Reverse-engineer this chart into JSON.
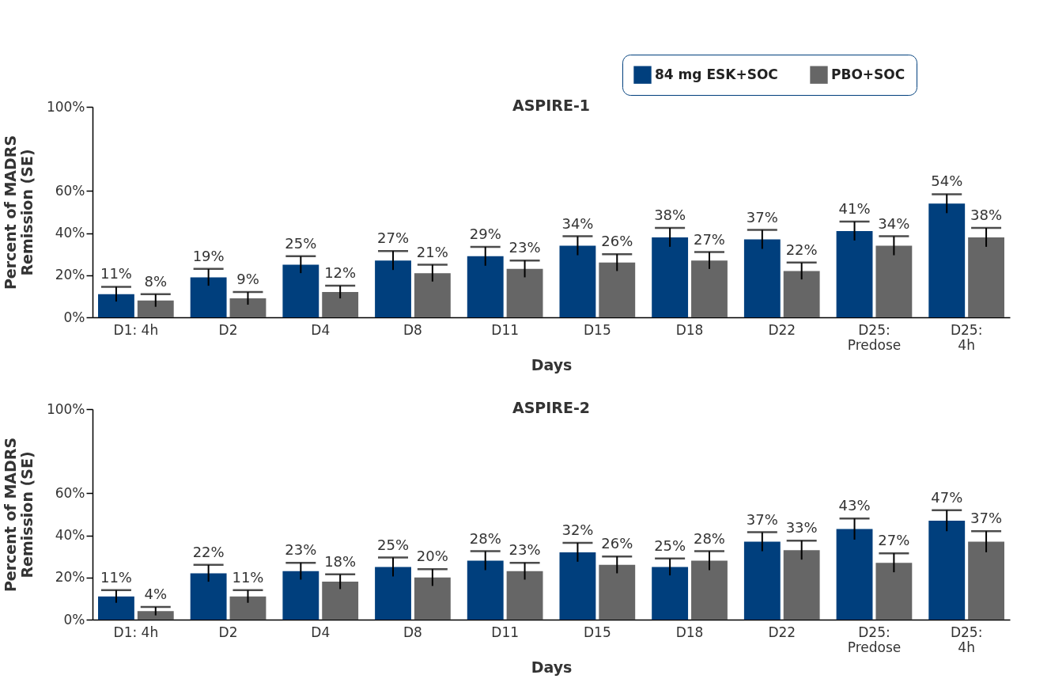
{
  "chart_data": [
    {
      "type": "bar",
      "title": "ASPIRE-1",
      "xlabel": "Days",
      "ylabel": "Percent of MADRS\nRemission (SE)",
      "categories": [
        "D1: 4h",
        "D2",
        "D4",
        "D8",
        "D11",
        "D15",
        "D18",
        "D22",
        "D25:\nPredose",
        "D25:\n4h"
      ],
      "series": [
        {
          "name": "84 mg ESK+SOC",
          "color": "#003f7d",
          "values": [
            11,
            19,
            25,
            27,
            29,
            34,
            38,
            37,
            41,
            54
          ],
          "errors": [
            3.5,
            4,
            4,
            4.5,
            4.5,
            4.5,
            4.5,
            4.5,
            4.5,
            4.5
          ],
          "value_labels": [
            "11%",
            "19%",
            "25%",
            "27%",
            "29%",
            "34%",
            "38%",
            "37%",
            "41%",
            "54%"
          ]
        },
        {
          "name": "PBO+SOC",
          "color": "#666666",
          "values": [
            8,
            9,
            12,
            21,
            23,
            26,
            27,
            22,
            34,
            38
          ],
          "errors": [
            3,
            3,
            3,
            4,
            4,
            4,
            4,
            4,
            4.5,
            4.5
          ],
          "value_labels": [
            "8%",
            "9%",
            "12%",
            "21%",
            "23%",
            "26%",
            "27%",
            "22%",
            "34%",
            "38%"
          ]
        }
      ],
      "ylim": [
        0,
        100
      ],
      "yticks": [
        {
          "value": 0,
          "label": "0%"
        },
        {
          "value": 20,
          "label": "20%"
        },
        {
          "value": 40,
          "label": "40%"
        },
        {
          "value": 60,
          "label": "60%"
        },
        {
          "value": 100,
          "label": "100%"
        }
      ],
      "grid": false,
      "legend": "top right"
    },
    {
      "type": "bar",
      "title": "ASPIRE-2",
      "xlabel": "Days",
      "ylabel": "Percent of MADRS\nRemission (SE)",
      "categories": [
        "D1: 4h",
        "D2",
        "D4",
        "D8",
        "D11",
        "D15",
        "D18",
        "D22",
        "D25:\nPredose",
        "D25:\n4h"
      ],
      "series": [
        {
          "name": "84 mg ESK+SOC",
          "color": "#003f7d",
          "values": [
            11,
            22,
            23,
            25,
            28,
            32,
            25,
            37,
            43,
            47
          ],
          "errors": [
            3,
            4,
            4,
            4.5,
            4.5,
            4.5,
            4,
            4.5,
            5,
            5
          ],
          "value_labels": [
            "11%",
            "22%",
            "23%",
            "25%",
            "28%",
            "32%",
            "25%",
            "37%",
            "43%",
            "47%"
          ]
        },
        {
          "name": "PBO+SOC",
          "color": "#666666",
          "values": [
            4,
            11,
            18,
            20,
            23,
            26,
            28,
            33,
            27,
            37
          ],
          "errors": [
            2,
            3,
            3.5,
            4,
            4,
            4,
            4.5,
            4.5,
            4.5,
            5
          ],
          "value_labels": [
            "4%",
            "11%",
            "18%",
            "20%",
            "23%",
            "26%",
            "28%",
            "33%",
            "27%",
            "37%"
          ]
        }
      ],
      "ylim": [
        0,
        100
      ],
      "yticks": [
        {
          "value": 0,
          "label": "0%"
        },
        {
          "value": 20,
          "label": "20%"
        },
        {
          "value": 40,
          "label": "40%"
        },
        {
          "value": 60,
          "label": "60%"
        },
        {
          "value": 100,
          "label": "100%"
        }
      ],
      "grid": false,
      "legend": "top right"
    }
  ]
}
